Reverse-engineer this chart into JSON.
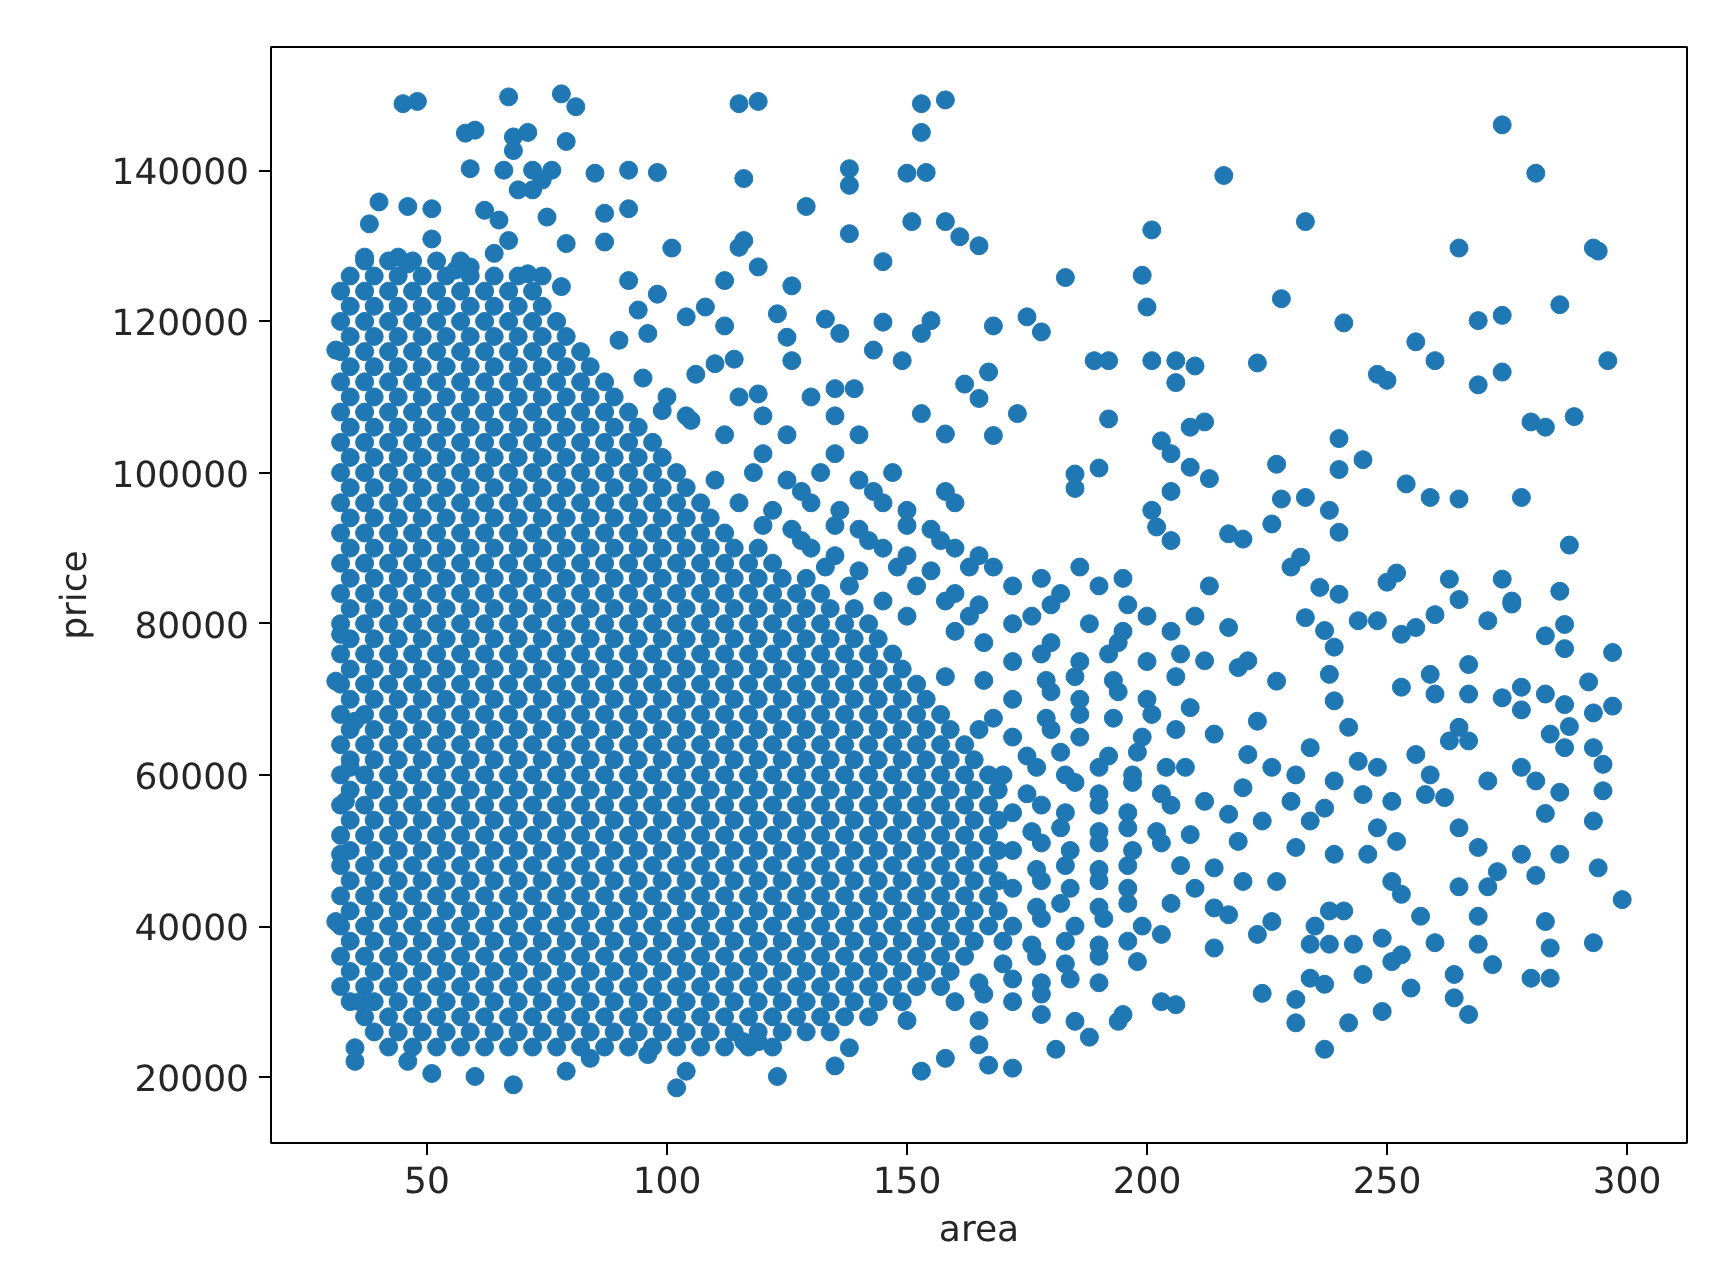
{
  "chart_data": {
    "type": "scatter",
    "xlabel": "area",
    "ylabel": "price",
    "color": "#1f77b4",
    "marker": "circle",
    "grid": false,
    "xlim": [
      17.5,
      312.5
    ],
    "ylim": [
      11300,
      156300
    ],
    "xticks": [
      50,
      100,
      150,
      200,
      250,
      300
    ],
    "yticks": [
      20000,
      40000,
      60000,
      80000,
      100000,
      120000,
      140000
    ],
    "x": [
      37,
      42,
      47,
      52,
      57,
      34,
      39,
      44,
      49,
      54,
      59,
      64,
      69,
      74,
      32,
      37,
      42,
      47,
      52,
      57,
      62,
      67,
      72,
      34,
      39,
      44,
      49,
      54,
      59,
      64,
      69,
      74,
      32,
      37,
      42,
      47,
      52,
      57,
      62,
      67,
      72,
      77,
      34,
      39,
      44,
      49,
      54,
      59,
      64,
      69,
      74,
      79,
      32,
      37,
      42,
      47,
      52,
      57,
      62,
      67,
      72,
      77,
      82,
      34,
      39,
      44,
      49,
      54,
      59,
      64,
      69,
      74,
      79,
      84,
      32,
      37,
      42,
      47,
      52,
      57,
      62,
      67,
      72,
      77,
      82,
      87,
      34,
      39,
      44,
      49,
      54,
      59,
      64,
      69,
      74,
      79,
      84,
      89,
      32,
      37,
      42,
      47,
      52,
      57,
      62,
      67,
      72,
      77,
      82,
      87,
      92,
      34,
      39,
      44,
      49,
      54,
      59,
      64,
      69,
      74,
      79,
      84,
      89,
      94,
      32,
      37,
      42,
      47,
      52,
      57,
      62,
      67,
      72,
      77,
      82,
      87,
      92,
      97,
      34,
      39,
      44,
      49,
      54,
      59,
      64,
      69,
      74,
      79,
      84,
      89,
      94,
      99,
      32,
      37,
      42,
      47,
      52,
      57,
      62,
      67,
      72,
      77,
      82,
      87,
      92,
      97,
      102,
      34,
      39,
      44,
      49,
      54,
      59,
      64,
      69,
      74,
      79,
      84,
      89,
      94,
      99,
      104,
      32,
      37,
      42,
      47,
      52,
      57,
      62,
      67,
      72,
      77,
      82,
      87,
      92,
      97,
      102,
      107,
      34,
      39,
      44,
      49,
      54,
      59,
      64,
      69,
      74,
      79,
      84,
      89,
      94,
      99,
      104,
      109,
      32,
      37,
      42,
      47,
      52,
      57,
      62,
      67,
      72,
      77,
      82,
      87,
      92,
      97,
      102,
      107,
      112,
      34,
      39,
      44,
      49,
      54,
      59,
      64,
      69,
      74,
      79,
      84,
      89,
      94,
      99,
      104,
      109,
      114,
      119,
      32,
      37,
      42,
      47,
      52,
      57,
      62,
      67,
      72,
      77,
      82,
      87,
      92,
      97,
      102,
      107,
      112,
      117,
      122,
      34,
      39,
      44,
      49,
      54,
      59,
      64,
      69,
      74,
      79,
      84,
      89,
      94,
      99,
      104,
      109,
      114,
      119,
      124,
      129,
      32,
      37,
      42,
      47,
      52,
      57,
      62,
      67,
      72,
      77,
      82,
      87,
      92,
      97,
      102,
      107,
      112,
      117,
      122,
      127,
      132,
      34,
      39,
      44,
      49,
      54,
      59,
      64,
      69,
      74,
      79,
      84,
      89,
      94,
      99,
      104,
      109,
      114,
      119,
      124,
      129,
      134,
      139,
      32,
      37,
      42,
      47,
      52,
      57,
      62,
      67,
      72,
      77,
      82,
      87,
      92,
      97,
      102,
      107,
      112,
      117,
      122,
      127,
      132,
      137,
      142,
      34,
      39,
      44,
      49,
      54,
      59,
      64,
      69,
      74,
      79,
      84,
      89,
      94,
      99,
      104,
      109,
      114,
      119,
      124,
      129,
      134,
      139,
      144,
      32,
      37,
      42,
      47,
      52,
      57,
      62,
      67,
      72,
      77,
      82,
      87,
      92,
      97,
      102,
      107,
      112,
      117,
      122,
      127,
      132,
      137,
      142,
      147,
      34,
      39,
      44,
      49,
      54,
      59,
      64,
      69,
      74,
      79,
      84,
      89,
      94,
      99,
      104,
      109,
      114,
      119,
      124,
      129,
      134,
      139,
      144,
      149,
      32,
      37,
      42,
      47,
      52,
      57,
      62,
      67,
      72,
      77,
      82,
      87,
      92,
      97,
      102,
      107,
      112,
      117,
      122,
      127,
      132,
      137,
      142,
      147,
      152,
      34,
      39,
      44,
      49,
      54,
      59,
      64,
      69,
      74,
      79,
      84,
      89,
      94,
      99,
      104,
      109,
      114,
      119,
      124,
      129,
      134,
      139,
      144,
      149,
      154,
      32,
      37,
      42,
      47,
      52,
      57,
      62,
      67,
      72,
      77,
      82,
      87,
      92,
      97,
      102,
      107,
      112,
      117,
      122,
      127,
      132,
      137,
      142,
      147,
      152,
      157,
      34,
      39,
      44,
      49,
      54,
      59,
      64,
      69,
      74,
      79,
      84,
      89,
      94,
      99,
      104,
      109,
      114,
      119,
      124,
      129,
      134,
      139,
      144,
      149,
      154,
      159,
      32,
      37,
      42,
      47,
      52,
      57,
      62,
      67,
      72,
      77,
      82,
      87,
      92,
      97,
      102,
      107,
      112,
      117,
      122,
      127,
      132,
      137,
      142,
      147,
      152,
      157,
      162,
      34,
      39,
      44,
      49,
      54,
      59,
      64,
      69,
      74,
      79,
      84,
      89,
      94,
      99,
      104,
      109,
      114,
      119,
      124,
      129,
      134,
      139,
      144,
      149,
      154,
      159,
      164,
      32,
      37,
      42,
      47,
      52,
      57,
      62,
      67,
      72,
      77,
      82,
      87,
      92,
      97,
      102,
      107,
      112,
      117,
      122,
      127,
      132,
      137,
      142,
      147,
      152,
      157,
      162,
      167,
      34,
      39,
      44,
      49,
      54,
      59,
      64,
      69,
      74,
      79,
      84,
      89,
      94,
      99,
      104,
      109,
      114,
      119,
      124,
      129,
      134,
      139,
      144,
      149,
      154,
      159,
      164,
      169,
      32,
      37,
      42,
      47,
      52,
      57,
      62,
      67,
      72,
      77,
      82,
      87,
      92,
      97,
      102,
      107,
      112,
      117,
      122,
      127,
      132,
      137,
      142,
      147,
      152,
      157,
      162,
      167,
      34,
      39,
      44,
      49,
      54,
      59,
      64,
      69,
      74,
      79,
      84,
      89,
      94,
      99,
      104,
      109,
      114,
      119,
      124,
      129,
      134,
      139,
      144,
      149,
      154,
      159,
      164,
      169,
      32,
      37,
      42,
      47,
      52,
      57,
      62,
      67,
      72,
      77,
      82,
      87,
      92,
      97,
      102,
      107,
      112,
      117,
      122,
      127,
      132,
      137,
      142,
      147,
      152,
      157,
      162,
      167,
      34,
      39,
      44,
      49,
      54,
      59,
      64,
      69,
      74,
      79,
      84,
      89,
      94,
      99,
      104,
      109,
      114,
      119,
      124,
      129,
      134,
      139,
      144,
      149,
      154,
      159,
      164,
      169,
      32,
      37,
      42,
      47,
      52,
      57,
      62,
      67,
      72,
      77,
      82,
      87,
      92,
      97,
      102,
      107,
      112,
      117,
      122,
      127,
      132,
      137,
      142,
      147,
      152,
      157,
      162,
      167,
      34,
      39,
      44,
      49,
      54,
      59,
      64,
      69,
      74,
      79,
      84,
      89,
      94,
      99,
      104,
      109,
      114,
      119,
      124,
      129,
      134,
      139,
      144,
      149,
      154,
      159,
      164,
      169,
      32,
      37,
      42,
      47,
      52,
      57,
      62,
      67,
      72,
      77,
      82,
      87,
      92,
      97,
      102,
      107,
      112,
      117,
      122,
      127,
      132,
      137,
      142,
      147,
      152,
      157,
      162,
      167,
      34,
      39,
      44,
      49,
      54,
      59,
      64,
      69,
      74,
      79,
      84,
      89,
      94,
      99,
      104,
      109,
      114,
      119,
      124,
      129,
      134,
      139,
      144,
      149,
      154,
      159,
      164,
      169,
      32,
      37,
      42,
      47,
      52,
      57,
      62,
      67,
      72,
      77,
      82,
      87,
      92,
      97,
      102,
      107,
      112,
      117,
      122,
      127,
      132,
      137,
      142,
      147,
      152,
      157,
      162,
      167,
      34,
      39,
      44,
      49,
      54,
      59,
      64,
      69,
      74,
      79,
      84,
      89,
      94,
      99,
      104,
      109,
      114,
      119,
      124,
      129,
      134,
      139,
      144,
      149,
      154,
      159,
      164,
      32,
      37,
      42,
      47,
      52,
      57,
      62,
      67,
      72,
      77,
      82,
      87,
      92,
      97,
      102,
      107,
      112,
      117,
      122,
      127,
      132,
      137,
      142,
      147,
      152,
      157,
      162,
      34,
      39,
      44,
      49,
      54,
      59,
      64,
      69,
      74,
      79,
      84,
      89,
      94,
      99,
      104,
      109,
      114,
      119,
      124,
      129,
      134,
      139,
      144,
      149,
      154,
      159,
      32,
      37,
      42,
      47,
      52,
      57,
      62,
      67,
      72,
      77,
      82,
      87,
      92,
      97,
      102,
      107,
      112,
      117,
      122,
      127,
      132,
      137,
      142,
      147,
      152,
      157,
      34,
      39,
      44,
      49,
      54,
      59,
      64,
      69,
      74,
      79,
      84,
      89,
      94,
      99,
      104,
      109,
      114,
      119,
      124,
      129,
      134,
      139,
      144,
      149,
      37,
      42,
      47,
      52,
      57,
      62,
      67,
      72,
      77,
      82,
      87,
      92,
      97,
      102,
      107,
      112,
      117,
      122,
      127,
      132,
      137,
      142,
      39,
      44,
      49,
      54,
      59,
      64,
      69,
      74,
      79,
      84,
      89,
      94,
      99,
      104,
      109,
      114,
      119,
      124,
      129,
      134,
      42,
      47,
      52,
      57,
      62,
      67,
      72,
      77,
      82,
      87,
      92,
      97,
      102,
      107,
      112,
      117,
      122,
      168,
      186,
      172,
      190,
      165,
      180,
      196,
      172,
      188,
      166,
      180,
      194,
      172,
      186,
      200,
      166,
      179,
      193,
      172,
      186,
      200,
      168,
      179,
      193,
      172,
      186,
      199,
      175,
      192,
      170,
      183,
      197,
      175,
      190,
      203,
      172,
      183,
      196,
      176,
      190,
      202,
      172,
      184,
      197,
      177,
      190,
      172,
      184,
      196,
      177,
      190,
      172,
      185,
      199,
      176,
      190,
      170,
      183,
      165,
      178,
      190,
      160,
      172,
      150,
      165,
      178,
      195,
      160,
      182,
      176,
      200,
      210,
      160,
      195,
      205,
      178,
      192,
      207,
      158,
      185,
      206,
      180,
      194,
      186,
      201,
      165,
      180,
      206,
      182,
      198,
      177,
      190,
      204,
      185,
      197,
      178,
      190,
      205,
      182,
      196,
      178,
      190,
      203,
      183,
      196,
      207,
      178,
      190,
      182,
      196,
      205,
      178,
      191,
      170,
      183,
      196,
      177,
      190,
      172,
      184,
      166,
      178,
      90,
      95,
      100,
      115,
      130,
      104,
      120,
      135,
      112,
      125,
      140,
      120,
      135,
      118,
      132,
      147,
      128,
      143,
      158,
      122,
      136,
      150,
      126,
      140,
      155,
      130,
      145,
      160,
      133,
      148,
      163,
      138,
      152,
      110,
      125,
      140,
      115,
      130,
      145,
      160,
      120,
      135,
      150,
      128,
      142,
      157,
      135,
      150,
      165,
      140,
      155,
      145,
      158,
      150,
      163,
      45,
      48,
      67,
      78,
      81,
      115,
      119,
      153,
      158,
      58,
      60,
      68,
      71,
      68,
      79,
      153,
      59,
      66,
      72,
      76,
      69,
      72,
      74,
      85,
      92,
      98,
      116,
      138,
      138,
      150,
      154,
      40,
      46,
      51,
      62,
      75,
      87,
      92,
      129,
      151,
      158,
      38,
      51,
      65,
      67,
      64,
      79,
      87,
      101,
      115,
      116,
      119,
      138,
      145,
      161,
      165,
      37,
      44,
      46,
      56,
      59,
      71,
      78,
      92,
      98,
      94,
      96,
      112,
      126,
      104,
      108,
      112,
      123,
      125,
      126,
      133,
      136,
      145,
      155,
      153,
      143,
      149,
      162,
      31,
      106,
      110,
      114,
      135,
      139,
      119,
      153,
      158,
      99,
      105,
      274,
      281,
      216,
      233,
      201,
      265,
      293,
      294,
      183,
      199,
      200,
      228,
      168,
      175,
      178,
      241,
      286,
      269,
      274,
      256,
      260,
      296,
      274,
      269,
      248,
      250,
      223,
      189,
      192,
      201,
      206,
      210,
      206,
      167,
      165,
      173,
      168,
      192,
      209,
      212,
      203,
      205,
      280,
      283,
      289,
      240,
      245,
      227,
      240,
      190,
      185,
      185,
      209,
      213,
      254,
      259,
      265,
      278,
      205,
      228,
      233,
      238,
      240,
      226,
      288,
      286,
      263,
      265,
      274,
      276,
      252,
      250,
      217,
      220,
      213,
      201,
      202,
      205,
      230,
      232,
      236,
      240,
      297,
      287,
      283,
      287,
      292,
      297,
      293,
      288,
      284,
      287,
      278,
      283,
      287,
      274,
      278,
      293,
      295,
      295,
      293,
      286,
      283,
      278,
      281,
      271,
      294,
      299,
      293,
      286,
      278,
      281,
      283,
      284,
      280,
      284,
      272,
      269,
      269,
      265,
      273,
      271,
      260,
      257,
      264,
      264,
      267,
      255,
      249,
      242,
      237,
      231,
      231,
      224,
      234,
      237,
      245,
      251,
      253,
      235,
      238,
      241,
      234,
      238,
      243,
      249,
      233,
      237,
      239,
      238,
      244,
      248,
      253,
      256,
      260,
      271,
      276,
      253,
      259,
      260,
      267,
      267,
      265,
      267,
      263,
      256,
      259,
      258,
      262,
      265,
      269,
      248,
      245,
      251,
      248,
      252,
      246,
      251,
      253,
      239,
      242,
      244,
      239,
      237,
      239,
      234,
      231,
      231,
      234,
      230,
      227,
      226,
      221,
      227,
      223,
      221,
      226,
      220,
      217,
      224,
      219,
      214,
      220,
      217,
      214,
      223,
      203,
      206,
      194,
      195,
      188,
      185,
      181,
      178,
      167,
      172,
      165,
      210,
      214,
      203,
      198,
      209,
      212,
      208,
      214,
      209,
      212,
      217,
      219,
      35,
      35,
      51,
      60,
      68,
      79,
      102,
      104,
      123,
      135,
      153,
      158,
      116,
      119,
      96,
      46,
      84,
      138,
      32,
      31,
      31,
      32,
      33,
      36,
      35,
      34
    ],
    "values": [
      128000,
      128000,
      128000,
      128000,
      128000,
      126000,
      126000,
      126000,
      126000,
      126000,
      126000,
      126000,
      126000,
      126000,
      124000,
      124000,
      124000,
      124000,
      124000,
      124000,
      124000,
      124000,
      124000,
      122000,
      122000,
      122000,
      122000,
      122000,
      122000,
      122000,
      122000,
      122000,
      120000,
      120000,
      120000,
      120000,
      120000,
      120000,
      120000,
      120000,
      120000,
      120000,
      118000,
      118000,
      118000,
      118000,
      118000,
      118000,
      118000,
      118000,
      118000,
      118000,
      116000,
      116000,
      116000,
      116000,
      116000,
      116000,
      116000,
      116000,
      116000,
      116000,
      116000,
      114000,
      114000,
      114000,
      114000,
      114000,
      114000,
      114000,
      114000,
      114000,
      114000,
      114000,
      112000,
      112000,
      112000,
      112000,
      112000,
      112000,
      112000,
      112000,
      112000,
      112000,
      112000,
      112000,
      110000,
      110000,
      110000,
      110000,
      110000,
      110000,
      110000,
      110000,
      110000,
      110000,
      110000,
      110000,
      108000,
      108000,
      108000,
      108000,
      108000,
      108000,
      108000,
      108000,
      108000,
      108000,
      108000,
      108000,
      108000,
      106000,
      106000,
      106000,
      106000,
      106000,
      106000,
      106000,
      106000,
      106000,
      106000,
      106000,
      106000,
      106000,
      104000,
      104000,
      104000,
      104000,
      104000,
      104000,
      104000,
      104000,
      104000,
      104000,
      104000,
      104000,
      104000,
      104000,
      102000,
      102000,
      102000,
      102000,
      102000,
      102000,
      102000,
      102000,
      102000,
      102000,
      102000,
      102000,
      102000,
      102000,
      100000,
      100000,
      100000,
      100000,
      100000,
      100000,
      100000,
      100000,
      100000,
      100000,
      100000,
      100000,
      100000,
      100000,
      100000,
      98000,
      98000,
      98000,
      98000,
      98000,
      98000,
      98000,
      98000,
      98000,
      98000,
      98000,
      98000,
      98000,
      98000,
      98000,
      96000,
      96000,
      96000,
      96000,
      96000,
      96000,
      96000,
      96000,
      96000,
      96000,
      96000,
      96000,
      96000,
      96000,
      96000,
      96000,
      94000,
      94000,
      94000,
      94000,
      94000,
      94000,
      94000,
      94000,
      94000,
      94000,
      94000,
      94000,
      94000,
      94000,
      94000,
      94000,
      92000,
      92000,
      92000,
      92000,
      92000,
      92000,
      92000,
      92000,
      92000,
      92000,
      92000,
      92000,
      92000,
      92000,
      92000,
      92000,
      92000,
      90000,
      90000,
      90000,
      90000,
      90000,
      90000,
      90000,
      90000,
      90000,
      90000,
      90000,
      90000,
      90000,
      90000,
      90000,
      90000,
      90000,
      90000,
      88000,
      88000,
      88000,
      88000,
      88000,
      88000,
      88000,
      88000,
      88000,
      88000,
      88000,
      88000,
      88000,
      88000,
      88000,
      88000,
      88000,
      88000,
      88000,
      86000,
      86000,
      86000,
      86000,
      86000,
      86000,
      86000,
      86000,
      86000,
      86000,
      86000,
      86000,
      86000,
      86000,
      86000,
      86000,
      86000,
      86000,
      86000,
      86000,
      84000,
      84000,
      84000,
      84000,
      84000,
      84000,
      84000,
      84000,
      84000,
      84000,
      84000,
      84000,
      84000,
      84000,
      84000,
      84000,
      84000,
      84000,
      84000,
      84000,
      84000,
      82000,
      82000,
      82000,
      82000,
      82000,
      82000,
      82000,
      82000,
      82000,
      82000,
      82000,
      82000,
      82000,
      82000,
      82000,
      82000,
      82000,
      82000,
      82000,
      82000,
      82000,
      82000,
      80000,
      80000,
      80000,
      80000,
      80000,
      80000,
      80000,
      80000,
      80000,
      80000,
      80000,
      80000,
      80000,
      80000,
      80000,
      80000,
      80000,
      80000,
      80000,
      80000,
      80000,
      80000,
      80000,
      78000,
      78000,
      78000,
      78000,
      78000,
      78000,
      78000,
      78000,
      78000,
      78000,
      78000,
      78000,
      78000,
      78000,
      78000,
      78000,
      78000,
      78000,
      78000,
      78000,
      78000,
      78000,
      78000,
      76000,
      76000,
      76000,
      76000,
      76000,
      76000,
      76000,
      76000,
      76000,
      76000,
      76000,
      76000,
      76000,
      76000,
      76000,
      76000,
      76000,
      76000,
      76000,
      76000,
      76000,
      76000,
      76000,
      76000,
      74000,
      74000,
      74000,
      74000,
      74000,
      74000,
      74000,
      74000,
      74000,
      74000,
      74000,
      74000,
      74000,
      74000,
      74000,
      74000,
      74000,
      74000,
      74000,
      74000,
      74000,
      74000,
      74000,
      74000,
      72000,
      72000,
      72000,
      72000,
      72000,
      72000,
      72000,
      72000,
      72000,
      72000,
      72000,
      72000,
      72000,
      72000,
      72000,
      72000,
      72000,
      72000,
      72000,
      72000,
      72000,
      72000,
      72000,
      72000,
      72000,
      70000,
      70000,
      70000,
      70000,
      70000,
      70000,
      70000,
      70000,
      70000,
      70000,
      70000,
      70000,
      70000,
      70000,
      70000,
      70000,
      70000,
      70000,
      70000,
      70000,
      70000,
      70000,
      70000,
      70000,
      70000,
      68000,
      68000,
      68000,
      68000,
      68000,
      68000,
      68000,
      68000,
      68000,
      68000,
      68000,
      68000,
      68000,
      68000,
      68000,
      68000,
      68000,
      68000,
      68000,
      68000,
      68000,
      68000,
      68000,
      68000,
      68000,
      68000,
      66000,
      66000,
      66000,
      66000,
      66000,
      66000,
      66000,
      66000,
      66000,
      66000,
      66000,
      66000,
      66000,
      66000,
      66000,
      66000,
      66000,
      66000,
      66000,
      66000,
      66000,
      66000,
      66000,
      66000,
      66000,
      66000,
      64000,
      64000,
      64000,
      64000,
      64000,
      64000,
      64000,
      64000,
      64000,
      64000,
      64000,
      64000,
      64000,
      64000,
      64000,
      64000,
      64000,
      64000,
      64000,
      64000,
      64000,
      64000,
      64000,
      64000,
      64000,
      64000,
      64000,
      62000,
      62000,
      62000,
      62000,
      62000,
      62000,
      62000,
      62000,
      62000,
      62000,
      62000,
      62000,
      62000,
      62000,
      62000,
      62000,
      62000,
      62000,
      62000,
      62000,
      62000,
      62000,
      62000,
      62000,
      62000,
      62000,
      62000,
      60000,
      60000,
      60000,
      60000,
      60000,
      60000,
      60000,
      60000,
      60000,
      60000,
      60000,
      60000,
      60000,
      60000,
      60000,
      60000,
      60000,
      60000,
      60000,
      60000,
      60000,
      60000,
      60000,
      60000,
      60000,
      60000,
      60000,
      60000,
      58000,
      58000,
      58000,
      58000,
      58000,
      58000,
      58000,
      58000,
      58000,
      58000,
      58000,
      58000,
      58000,
      58000,
      58000,
      58000,
      58000,
      58000,
      58000,
      58000,
      58000,
      58000,
      58000,
      58000,
      58000,
      58000,
      58000,
      58000,
      56000,
      56000,
      56000,
      56000,
      56000,
      56000,
      56000,
      56000,
      56000,
      56000,
      56000,
      56000,
      56000,
      56000,
      56000,
      56000,
      56000,
      56000,
      56000,
      56000,
      56000,
      56000,
      56000,
      56000,
      56000,
      56000,
      56000,
      56000,
      54000,
      54000,
      54000,
      54000,
      54000,
      54000,
      54000,
      54000,
      54000,
      54000,
      54000,
      54000,
      54000,
      54000,
      54000,
      54000,
      54000,
      54000,
      54000,
      54000,
      54000,
      54000,
      54000,
      54000,
      54000,
      54000,
      54000,
      54000,
      52000,
      52000,
      52000,
      52000,
      52000,
      52000,
      52000,
      52000,
      52000,
      52000,
      52000,
      52000,
      52000,
      52000,
      52000,
      52000,
      52000,
      52000,
      52000,
      52000,
      52000,
      52000,
      52000,
      52000,
      52000,
      52000,
      52000,
      52000,
      50000,
      50000,
      50000,
      50000,
      50000,
      50000,
      50000,
      50000,
      50000,
      50000,
      50000,
      50000,
      50000,
      50000,
      50000,
      50000,
      50000,
      50000,
      50000,
      50000,
      50000,
      50000,
      50000,
      50000,
      50000,
      50000,
      50000,
      50000,
      48000,
      48000,
      48000,
      48000,
      48000,
      48000,
      48000,
      48000,
      48000,
      48000,
      48000,
      48000,
      48000,
      48000,
      48000,
      48000,
      48000,
      48000,
      48000,
      48000,
      48000,
      48000,
      48000,
      48000,
      48000,
      48000,
      48000,
      48000,
      46000,
      46000,
      46000,
      46000,
      46000,
      46000,
      46000,
      46000,
      46000,
      46000,
      46000,
      46000,
      46000,
      46000,
      46000,
      46000,
      46000,
      46000,
      46000,
      46000,
      46000,
      46000,
      46000,
      46000,
      46000,
      46000,
      46000,
      46000,
      44000,
      44000,
      44000,
      44000,
      44000,
      44000,
      44000,
      44000,
      44000,
      44000,
      44000,
      44000,
      44000,
      44000,
      44000,
      44000,
      44000,
      44000,
      44000,
      44000,
      44000,
      44000,
      44000,
      44000,
      44000,
      44000,
      44000,
      44000,
      42000,
      42000,
      42000,
      42000,
      42000,
      42000,
      42000,
      42000,
      42000,
      42000,
      42000,
      42000,
      42000,
      42000,
      42000,
      42000,
      42000,
      42000,
      42000,
      42000,
      42000,
      42000,
      42000,
      42000,
      42000,
      42000,
      42000,
      42000,
      40000,
      40000,
      40000,
      40000,
      40000,
      40000,
      40000,
      40000,
      40000,
      40000,
      40000,
      40000,
      40000,
      40000,
      40000,
      40000,
      40000,
      40000,
      40000,
      40000,
      40000,
      40000,
      40000,
      40000,
      40000,
      40000,
      40000,
      40000,
      38000,
      38000,
      38000,
      38000,
      38000,
      38000,
      38000,
      38000,
      38000,
      38000,
      38000,
      38000,
      38000,
      38000,
      38000,
      38000,
      38000,
      38000,
      38000,
      38000,
      38000,
      38000,
      38000,
      38000,
      38000,
      38000,
      38000,
      36000,
      36000,
      36000,
      36000,
      36000,
      36000,
      36000,
      36000,
      36000,
      36000,
      36000,
      36000,
      36000,
      36000,
      36000,
      36000,
      36000,
      36000,
      36000,
      36000,
      36000,
      36000,
      36000,
      36000,
      36000,
      36000,
      36000,
      34000,
      34000,
      34000,
      34000,
      34000,
      34000,
      34000,
      34000,
      34000,
      34000,
      34000,
      34000,
      34000,
      34000,
      34000,
      34000,
      34000,
      34000,
      34000,
      34000,
      34000,
      34000,
      34000,
      34000,
      34000,
      34000,
      32000,
      32000,
      32000,
      32000,
      32000,
      32000,
      32000,
      32000,
      32000,
      32000,
      32000,
      32000,
      32000,
      32000,
      32000,
      32000,
      32000,
      32000,
      32000,
      32000,
      32000,
      32000,
      32000,
      32000,
      32000,
      32000,
      30000,
      30000,
      30000,
      30000,
      30000,
      30000,
      30000,
      30000,
      30000,
      30000,
      30000,
      30000,
      30000,
      30000,
      30000,
      30000,
      30000,
      30000,
      30000,
      30000,
      30000,
      30000,
      30000,
      30000,
      28000,
      28000,
      28000,
      28000,
      28000,
      28000,
      28000,
      28000,
      28000,
      28000,
      28000,
      28000,
      28000,
      28000,
      28000,
      28000,
      28000,
      28000,
      28000,
      28000,
      28000,
      28000,
      26000,
      26000,
      26000,
      26000,
      26000,
      26000,
      26000,
      26000,
      26000,
      26000,
      26000,
      26000,
      26000,
      26000,
      26000,
      26000,
      26000,
      26000,
      26000,
      26000,
      24000,
      24000,
      24000,
      24000,
      24000,
      24000,
      24000,
      24000,
      24000,
      24000,
      24000,
      24000,
      24000,
      24000,
      24000,
      24000,
      24000,
      87500,
      87500,
      85000,
      85000,
      82500,
      82500,
      82500,
      80000,
      80000,
      77500,
      77500,
      77500,
      75000,
      75000,
      75000,
      72500,
      72500,
      72500,
      70000,
      70000,
      70000,
      67500,
      67500,
      67500,
      65000,
      65000,
      65000,
      62500,
      62500,
      60000,
      60000,
      60000,
      57500,
      57500,
      57500,
      55000,
      55000,
      55000,
      52500,
      52500,
      52500,
      50000,
      50000,
      50000,
      47500,
      47500,
      45000,
      45000,
      45000,
      42500,
      42500,
      40000,
      40000,
      40000,
      37500,
      37500,
      35000,
      35000,
      32500,
      32500,
      32500,
      30000,
      30000,
      27500,
      27500,
      86000,
      86000,
      84000,
      84000,
      81000,
      81000,
      81000,
      79000,
      79000,
      79000,
      76000,
      76000,
      76000,
      73000,
      73000,
      73000,
      71000,
      71000,
      68000,
      68000,
      66000,
      66000,
      66000,
      63000,
      63000,
      61000,
      61000,
      61000,
      59000,
      59000,
      56000,
      56000,
      56000,
      53000,
      53000,
      51000,
      51000,
      51000,
      48000,
      48000,
      48000,
      46000,
      46000,
      43000,
      43000,
      43000,
      41000,
      41000,
      38000,
      38000,
      38000,
      36000,
      36000,
      33000,
      33000,
      31000,
      31000,
      117500,
      112500,
      110000,
      110000,
      110000,
      107500,
      107500,
      107500,
      105000,
      105000,
      105000,
      102500,
      102500,
      100000,
      100000,
      100000,
      97500,
      97500,
      97500,
      95000,
      95000,
      95000,
      92500,
      92500,
      92500,
      90000,
      90000,
      90000,
      87500,
      87500,
      87500,
      85000,
      85000,
      99000,
      99000,
      99000,
      96000,
      96000,
      96000,
      96000,
      93000,
      93000,
      93000,
      91000,
      91000,
      91000,
      89000,
      89000,
      89000,
      87000,
      87000,
      83000,
      83000,
      81000,
      81000,
      148800,
      149100,
      149700,
      150100,
      148400,
      148800,
      149100,
      148800,
      149300,
      144900,
      145300,
      144400,
      145000,
      142600,
      143800,
      145000,
      140200,
      140000,
      140000,
      140000,
      137400,
      137400,
      138700,
      139600,
      140000,
      139700,
      138900,
      140200,
      138000,
      139600,
      139700,
      135800,
      135200,
      134900,
      134700,
      133800,
      134300,
      134900,
      135200,
      133200,
      133200,
      132900,
      130900,
      133400,
      130700,
      129000,
      130300,
      130500,
      129700,
      129800,
      130700,
      127200,
      131600,
      127900,
      131200,
      130000,
      128500,
      128500,
      127600,
      126800,
      127200,
      126300,
      124600,
      125400,
      123600,
      121500,
      118400,
      125400,
      124700,
      120600,
      121900,
      119400,
      121000,
      117900,
      114800,
      120300,
      118400,
      119900,
      120100,
      118400,
      116200,
      114800,
      111700,
      116200,
      113000,
      114400,
      115000,
      111100,
      111100,
      110400,
      107800,
      105100,
      108200,
      106900,
      146000,
      139600,
      139300,
      133200,
      132100,
      129700,
      129700,
      129300,
      125800,
      126100,
      121900,
      123000,
      119400,
      120600,
      118600,
      119800,
      122200,
      120100,
      120800,
      117300,
      114800,
      114800,
      113300,
      111600,
      113000,
      112200,
      114500,
      114800,
      114800,
      114800,
      114800,
      114100,
      111900,
      113300,
      109800,
      107800,
      104900,
      107100,
      106000,
      106700,
      104200,
      102500,
      106700,
      106000,
      107400,
      104500,
      101700,
      101100,
      100400,
      100600,
      99800,
      97900,
      100700,
      99200,
      98500,
      96700,
      96500,
      96700,
      97500,
      96500,
      96700,
      95000,
      92100,
      93200,
      90400,
      84300,
      85900,
      83200,
      85900,
      83000,
      86700,
      85500,
      91900,
      91200,
      85000,
      95000,
      92800,
      91000,
      87500,
      88800,
      84800,
      83900,
      76200,
      79900,
      78400,
      76700,
      72300,
      69100,
      68200,
      66400,
      65400,
      63600,
      71600,
      70700,
      69300,
      70200,
      68600,
      63600,
      61400,
      57900,
      53900,
      57700,
      54900,
      61000,
      59200,
      59200,
      47700,
      43500,
      37800,
      49500,
      49500,
      46700,
      40600,
      37100,
      33100,
      33100,
      34900,
      37600,
      41300,
      45200,
      47200,
      45200,
      37800,
      41300,
      33600,
      30500,
      28300,
      31800,
      28700,
      27200,
      23700,
      27200,
      30300,
      31100,
      33100,
      32300,
      33600,
      35300,
      36200,
      40000,
      42000,
      42000,
      37600,
      37600,
      37600,
      38400,
      80800,
      79100,
      76900,
      73300,
      80400,
      80400,
      78600,
      79500,
      81200,
      80400,
      82600,
      71600,
      73300,
      70700,
      74600,
      70700,
      66300,
      64500,
      64500,
      62700,
      60000,
      57400,
      57000,
      53000,
      50400,
      61000,
      57400,
      56500,
      53000,
      51200,
      49500,
      45900,
      44200,
      69800,
      66300,
      61800,
      59200,
      55600,
      49500,
      53900,
      50400,
      60000,
      63600,
      56500,
      45900,
      40600,
      75100,
      72400,
      67100,
      62700,
      61000,
      58300,
      54800,
      53900,
      51200,
      47700,
      45900,
      41500,
      37100,
      38900,
      30000,
      29600,
      27400,
      28300,
      25300,
      27400,
      23700,
      28300,
      21600,
      21200,
      24300,
      45000,
      42400,
      38900,
      35300,
      52100,
      56500,
      61000,
      65400,
      68900,
      75100,
      79500,
      74200,
      23900,
      22100,
      20500,
      20100,
      19000,
      20800,
      18600,
      20800,
      20100,
      21500,
      20800,
      22500,
      24700,
      24700,
      23000,
      22100,
      22500,
      23900,
      49500,
      40600,
      72400,
      78600,
      56500,
      30000,
      67100,
      61000
    ]
  }
}
